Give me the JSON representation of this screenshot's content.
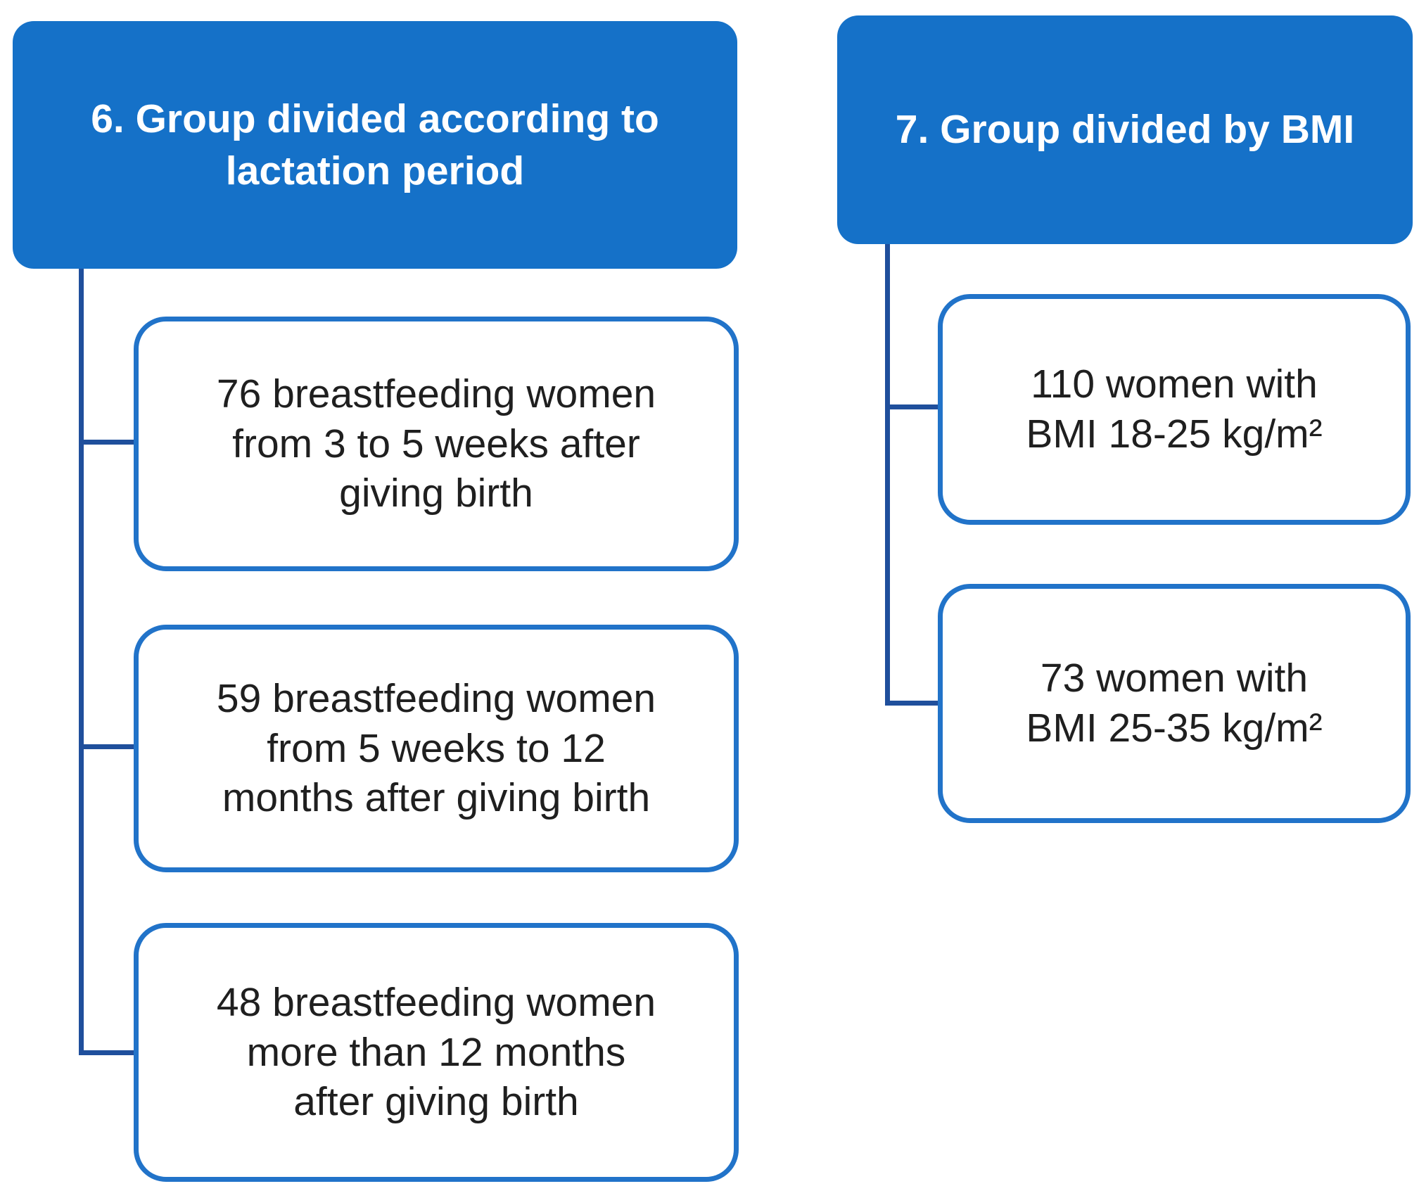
{
  "diagram": {
    "background_color": "#ffffff",
    "colors": {
      "header_fill": "#1571c8",
      "header_text": "#ffffff",
      "child_border": "#2173c9",
      "child_text": "#1f1f1f",
      "connector": "#1f4f9c"
    },
    "groups": [
      {
        "header": "6. Group divided according to\nlactation period",
        "children": [
          "76 breastfeeding women\nfrom 3 to 5 weeks after\ngiving birth",
          "59 breastfeeding women\nfrom 5 weeks to 12\nmonths after giving birth",
          "48 breastfeeding women\nmore than 12 months\nafter giving birth"
        ]
      },
      {
        "header": "7. Group divided by BMI",
        "children": [
          "110 women with\nBMI 18-25 kg/m²",
          "73 women with\nBMI 25-35 kg/m²"
        ]
      }
    ]
  }
}
